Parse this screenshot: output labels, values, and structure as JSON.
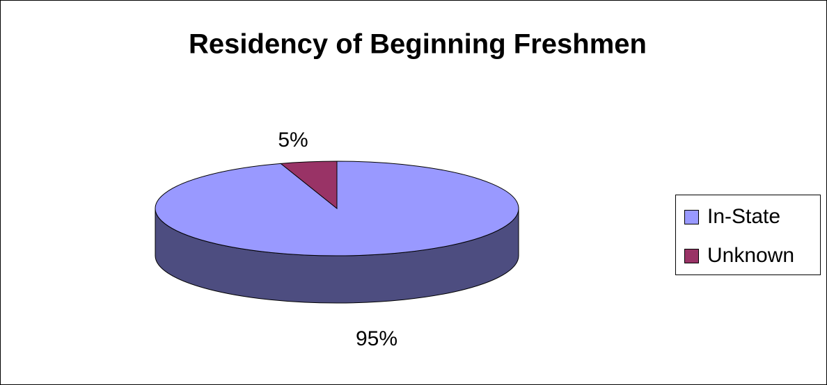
{
  "chart_data": {
    "type": "pie",
    "title": "Residency of Beginning Freshmen",
    "categories": [
      "In-State",
      "Unknown"
    ],
    "values": [
      95,
      5
    ],
    "value_labels": [
      "95%",
      "5%"
    ],
    "colors": [
      "#9999ff",
      "#993366"
    ],
    "legend": "right"
  }
}
